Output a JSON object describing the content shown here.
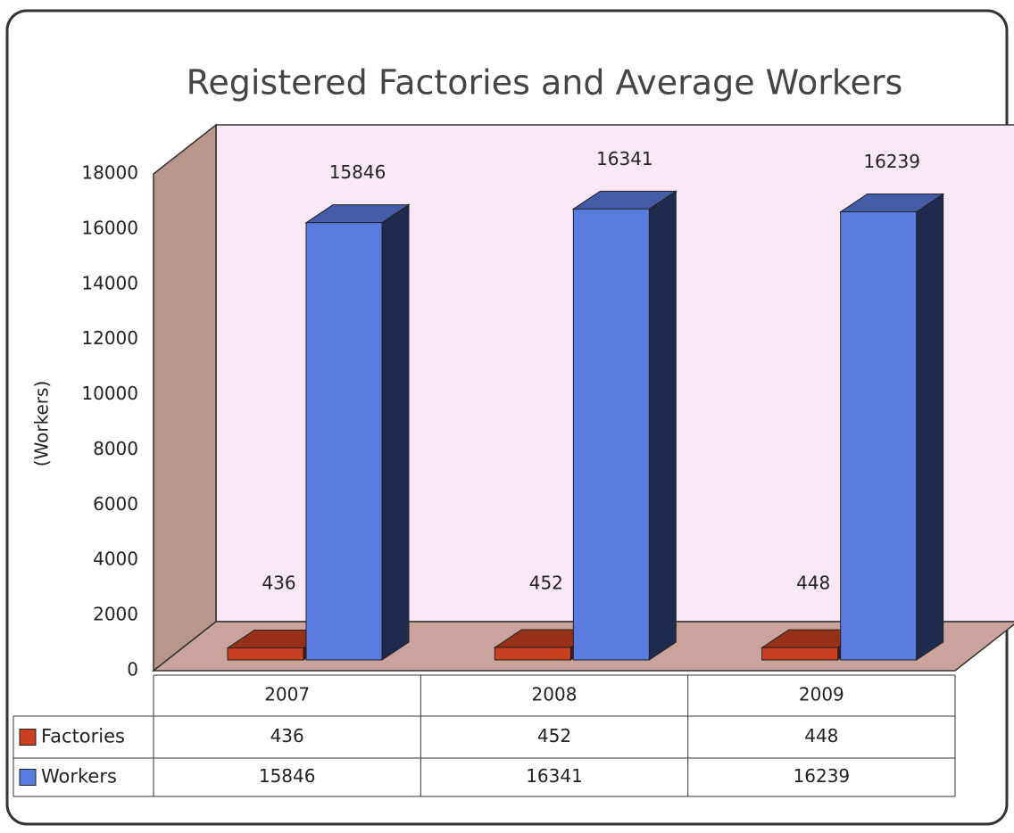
{
  "chart_data": {
    "type": "bar3d",
    "title": "Registered Factories and Average Workers",
    "y_label": "(Workers)",
    "categories": [
      "2007",
      "2008",
      "2009"
    ],
    "series": [
      {
        "name": "Factories",
        "color": "#c8401f",
        "values": [
          436,
          452,
          448
        ]
      },
      {
        "name": "Workers",
        "color": "#5a7be0",
        "values": [
          15846,
          16341,
          16239
        ]
      }
    ],
    "ylim": [
      0,
      18000
    ],
    "yticks": [
      0,
      2000,
      4000,
      6000,
      8000,
      10000,
      12000,
      14000,
      16000,
      18000
    ],
    "data_table": true
  }
}
